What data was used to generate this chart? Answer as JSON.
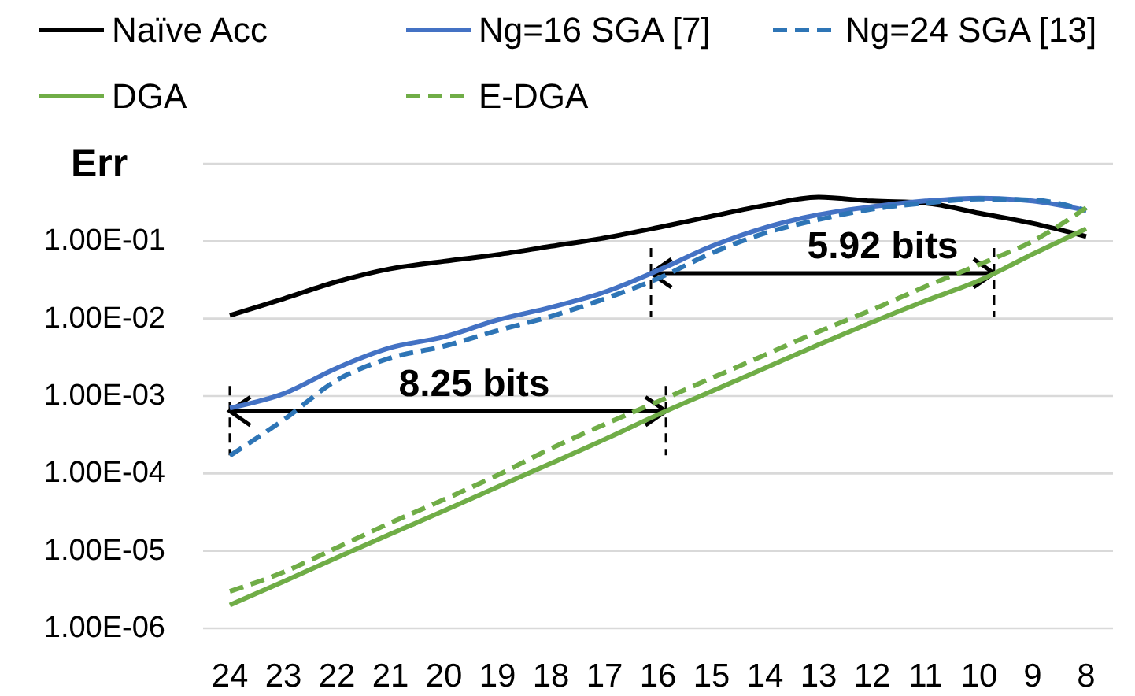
{
  "chart_data": {
    "type": "line",
    "ylabel": "Err",
    "categories": [
      "24",
      "23",
      "22",
      "21",
      "20",
      "19",
      "18",
      "17",
      "16",
      "15",
      "14",
      "13",
      "12",
      "11",
      "10",
      "9",
      "8"
    ],
    "series": [
      {
        "name": "Naïve Acc",
        "color": "#000000",
        "line_style": "solid",
        "values": [
          0.011,
          0.018,
          0.03,
          0.044,
          0.055,
          0.067,
          0.086,
          0.11,
          0.15,
          0.21,
          0.29,
          0.37,
          0.33,
          0.31,
          0.23,
          0.17,
          0.115
        ]
      },
      {
        "name": "Ng=16 SGA [7]",
        "color": "#4472c4",
        "line_style": "solid",
        "values": [
          0.0007,
          0.00107,
          0.0023,
          0.0042,
          0.0058,
          0.0096,
          0.014,
          0.022,
          0.042,
          0.086,
          0.15,
          0.22,
          0.28,
          0.33,
          0.36,
          0.33,
          0.25
        ]
      },
      {
        "name": "Ng=24 SGA [13]",
        "color": "#2e75b6",
        "line_style": "dashed",
        "values": [
          0.00017,
          0.00049,
          0.0016,
          0.0031,
          0.0044,
          0.007,
          0.0107,
          0.018,
          0.033,
          0.07,
          0.127,
          0.19,
          0.26,
          0.31,
          0.35,
          0.34,
          0.25
        ]
      },
      {
        "name": "DGA",
        "color": "#70ad47",
        "line_style": "solid",
        "values": [
          2e-06,
          4e-06,
          8.2e-06,
          1.65e-05,
          3.3e-05,
          6.7e-05,
          0.000135,
          0.000275,
          0.000575,
          0.00115,
          0.0023,
          0.0046,
          0.009,
          0.017,
          0.031,
          0.068,
          0.145
        ]
      },
      {
        "name": "E-DGA",
        "color": "#70ad47",
        "line_style": "dashed",
        "values": [
          3e-06,
          5.3e-06,
          1.1e-05,
          2.3e-05,
          4.6e-05,
          9.5e-05,
          0.00021,
          0.00043,
          0.00085,
          0.0017,
          0.0034,
          0.0068,
          0.013,
          0.026,
          0.05,
          0.1,
          0.27
        ]
      }
    ],
    "log": true,
    "ylim": [
      1e-06,
      1
    ],
    "yticks": [
      {
        "value": 1e-06,
        "label": "1.00E-06"
      },
      {
        "value": 1e-05,
        "label": "1.00E-05"
      },
      {
        "value": 0.0001,
        "label": "1.00E-04"
      },
      {
        "value": 0.001,
        "label": "1.00E-03"
      },
      {
        "value": 0.01,
        "label": "1.00E-02"
      },
      {
        "value": 0.1,
        "label": "1.00E-01"
      },
      {
        "value": 1,
        "label": null
      }
    ],
    "grid": "y",
    "legend": "top",
    "annotations": [
      "8.25 bits",
      "5.92 bits"
    ]
  }
}
